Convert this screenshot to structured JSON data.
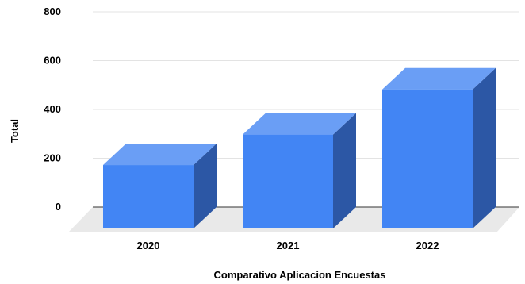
{
  "chart_data": {
    "type": "bar",
    "style": "3d",
    "categories": [
      "2020",
      "2021",
      "2022"
    ],
    "values": [
      260,
      385,
      570
    ],
    "xlabel": "Comparativo Aplicacion Encuestas",
    "ylabel": "Total",
    "ylim": [
      0,
      800
    ],
    "yticks": [
      "0",
      "200",
      "400",
      "600",
      "800"
    ],
    "grid": true,
    "colors": {
      "bar_front": "#4285f4",
      "bar_top": "#6a9ef5",
      "bar_side": "#2c57a5",
      "floor": "#e9e9e9",
      "gridline": "#e3e3e3",
      "baseline": "#333333"
    }
  }
}
